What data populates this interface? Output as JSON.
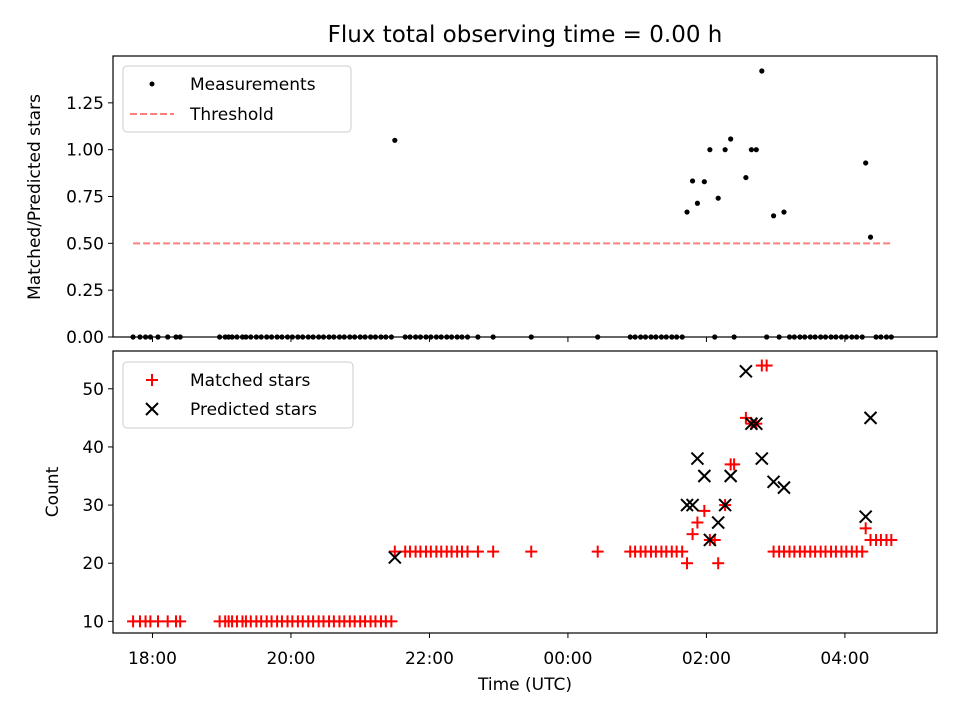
{
  "figure_title": "Flux total observing time = 0.00 h",
  "chart_data": [
    {
      "type": "scatter",
      "title": "Flux total observing time = 0.00 h",
      "xlabel": "",
      "ylabel": "Matched/Predicted stars",
      "xlim": [
        17.43,
        29.33
      ],
      "ylim": [
        0,
        1.5
      ],
      "yticks": [
        0.0,
        0.25,
        0.5,
        0.75,
        1.0,
        1.25
      ],
      "ytick_labels": [
        "0.00",
        "0.25",
        "0.50",
        "0.75",
        "1.00",
        "1.25"
      ],
      "grid": false,
      "legend_position": "upper-left",
      "series": [
        {
          "name": "Measurements",
          "marker": "dot",
          "color": "#000000",
          "x": [
            17.72,
            17.82,
            17.9,
            17.97,
            18.08,
            18.22,
            18.34,
            18.4,
            18.97,
            19.05,
            19.1,
            19.15,
            19.22,
            19.3,
            19.35,
            19.42,
            19.5,
            19.57,
            19.65,
            19.72,
            19.8,
            19.87,
            19.95,
            20.02,
            20.1,
            20.17,
            20.25,
            20.32,
            20.4,
            20.47,
            20.55,
            20.62,
            20.7,
            20.77,
            20.85,
            20.92,
            21.0,
            21.07,
            21.15,
            21.22,
            21.3,
            21.37,
            21.45,
            21.5,
            21.65,
            21.72,
            21.8,
            21.87,
            21.95,
            22.02,
            22.1,
            22.17,
            22.25,
            22.32,
            22.4,
            22.47,
            22.55,
            22.7,
            22.92,
            23.47,
            24.43,
            24.9,
            24.97,
            25.05,
            25.12,
            25.2,
            25.27,
            25.35,
            25.42,
            25.5,
            25.57,
            25.65,
            25.72,
            25.8,
            25.87,
            25.97,
            26.05,
            26.12,
            26.17,
            26.27,
            26.35,
            26.4,
            26.57,
            26.65,
            26.72,
            26.8,
            26.87,
            26.97,
            27.05,
            27.12,
            27.2,
            27.27,
            27.35,
            27.42,
            27.5,
            27.57,
            27.65,
            27.72,
            27.8,
            27.87,
            27.95,
            28.02,
            28.1,
            28.17,
            28.25,
            28.3,
            28.37,
            28.45,
            28.52,
            28.6,
            28.67
          ],
          "y": [
            0,
            0,
            0,
            0,
            0,
            0,
            0,
            0,
            0,
            0,
            0,
            0,
            0,
            0,
            0,
            0,
            0,
            0,
            0,
            0,
            0,
            0,
            0,
            0,
            0,
            0,
            0,
            0,
            0,
            0,
            0,
            0,
            0,
            0,
            0,
            0,
            0,
            0,
            0,
            0,
            0,
            0,
            0,
            1.05,
            0,
            0,
            0,
            0,
            0,
            0,
            0,
            0,
            0,
            0,
            0,
            0,
            0,
            0,
            0,
            0,
            0,
            0,
            0,
            0,
            0,
            0,
            0,
            0,
            0,
            0,
            0,
            0,
            0.667,
            0.833,
            0.714,
            0.829,
            1.0,
            0,
            0.741,
            1.0,
            1.057,
            0,
            0.851,
            1.0,
            1.0,
            1.42,
            0,
            0.647,
            0,
            0.667,
            0,
            0,
            0,
            0,
            0,
            0,
            0,
            0,
            0,
            0,
            0,
            0,
            0,
            0,
            0,
            0.929,
            0.533,
            0,
            0,
            0,
            0
          ]
        },
        {
          "name": "Threshold",
          "style": "dashed",
          "color": "#ff7f7f",
          "x": [
            17.72,
            28.67
          ],
          "y": [
            0.5,
            0.5
          ]
        }
      ]
    },
    {
      "type": "scatter",
      "title": "",
      "xlabel": "Time (UTC)",
      "ylabel": "Count",
      "xlim": [
        17.43,
        29.33
      ],
      "ylim": [
        8,
        56.5
      ],
      "xticks": [
        18,
        20,
        22,
        24,
        26,
        28
      ],
      "xtick_labels": [
        "18:00",
        "20:00",
        "22:00",
        "00:00",
        "02:00",
        "04:00"
      ],
      "yticks": [
        10,
        20,
        30,
        40,
        50
      ],
      "ytick_labels": [
        "10",
        "20",
        "30",
        "40",
        "50"
      ],
      "grid": false,
      "legend_position": "upper-left",
      "series": [
        {
          "name": "Matched stars",
          "marker": "plus",
          "color": "#ff0000",
          "x": [
            17.72,
            17.82,
            17.9,
            17.97,
            18.08,
            18.22,
            18.34,
            18.4,
            18.97,
            19.05,
            19.1,
            19.15,
            19.22,
            19.3,
            19.35,
            19.42,
            19.5,
            19.57,
            19.65,
            19.72,
            19.8,
            19.87,
            19.95,
            20.02,
            20.1,
            20.17,
            20.25,
            20.32,
            20.4,
            20.47,
            20.55,
            20.62,
            20.7,
            20.77,
            20.85,
            20.92,
            21.0,
            21.07,
            21.15,
            21.22,
            21.3,
            21.37,
            21.45,
            21.5,
            21.65,
            21.72,
            21.8,
            21.87,
            21.95,
            22.02,
            22.1,
            22.17,
            22.25,
            22.32,
            22.4,
            22.47,
            22.55,
            22.7,
            22.92,
            23.47,
            24.43,
            24.9,
            24.97,
            25.05,
            25.12,
            25.2,
            25.27,
            25.35,
            25.42,
            25.5,
            25.57,
            25.65,
            25.72,
            25.8,
            25.87,
            25.97,
            26.05,
            26.12,
            26.17,
            26.27,
            26.35,
            26.4,
            26.57,
            26.65,
            26.72,
            26.8,
            26.87,
            26.97,
            27.05,
            27.12,
            27.2,
            27.27,
            27.35,
            27.42,
            27.5,
            27.57,
            27.65,
            27.72,
            27.8,
            27.87,
            27.95,
            28.02,
            28.1,
            28.17,
            28.25,
            28.3,
            28.37,
            28.45,
            28.52,
            28.6,
            28.67
          ],
          "y": [
            10,
            10,
            10,
            10,
            10,
            10,
            10,
            10,
            10,
            10,
            10,
            10,
            10,
            10,
            10,
            10,
            10,
            10,
            10,
            10,
            10,
            10,
            10,
            10,
            10,
            10,
            10,
            10,
            10,
            10,
            10,
            10,
            10,
            10,
            10,
            10,
            10,
            10,
            10,
            10,
            10,
            10,
            10,
            22,
            22,
            22,
            22,
            22,
            22,
            22,
            22,
            22,
            22,
            22,
            22,
            22,
            22,
            22,
            22,
            22,
            22,
            22,
            22,
            22,
            22,
            22,
            22,
            22,
            22,
            22,
            22,
            22,
            20,
            25,
            27,
            29,
            24,
            24,
            20,
            30,
            37,
            37,
            45,
            44,
            44,
            54,
            54,
            22,
            22,
            22,
            22,
            22,
            22,
            22,
            22,
            22,
            22,
            22,
            22,
            22,
            22,
            22,
            22,
            22,
            22,
            26,
            24,
            24,
            24,
            24,
            24
          ]
        },
        {
          "name": "Predicted stars",
          "marker": "x",
          "color": "#000000",
          "x": [
            21.5,
            25.72,
            25.8,
            25.87,
            25.97,
            26.05,
            26.17,
            26.27,
            26.35,
            26.57,
            26.65,
            26.72,
            26.8,
            26.97,
            27.12,
            28.3,
            28.37
          ],
          "y": [
            21,
            30,
            30,
            38,
            35,
            24,
            27,
            30,
            35,
            53,
            44,
            44,
            38,
            34,
            33,
            28,
            45
          ]
        }
      ]
    }
  ]
}
